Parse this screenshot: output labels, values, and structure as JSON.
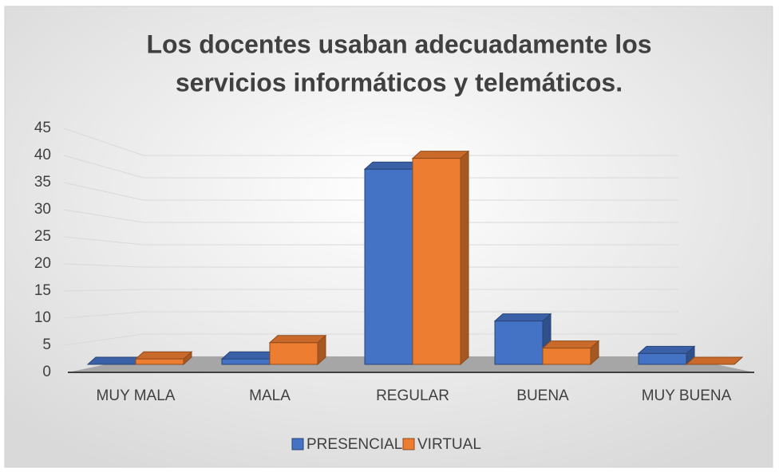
{
  "chart_data": {
    "type": "bar3d",
    "title": [
      "Los docentes usaban adecuadamente los",
      "servicios informáticos y telemáticos."
    ],
    "categories": [
      "MUY MALA",
      "MALA",
      "REGULAR",
      "BUENA",
      "MUY BUENA"
    ],
    "series": [
      {
        "name": "PRESENCIAL",
        "color": "#4472c4",
        "values": [
          0,
          1,
          36,
          8,
          2
        ]
      },
      {
        "name": "VIRTUAL",
        "color": "#ed7d31",
        "values": [
          1,
          4,
          38,
          3,
          0
        ]
      }
    ],
    "ylim": [
      0,
      45
    ],
    "yticks": [
      0,
      5,
      10,
      15,
      20,
      25,
      30,
      35,
      40,
      45
    ],
    "grid": true,
    "legend": "bottom"
  }
}
